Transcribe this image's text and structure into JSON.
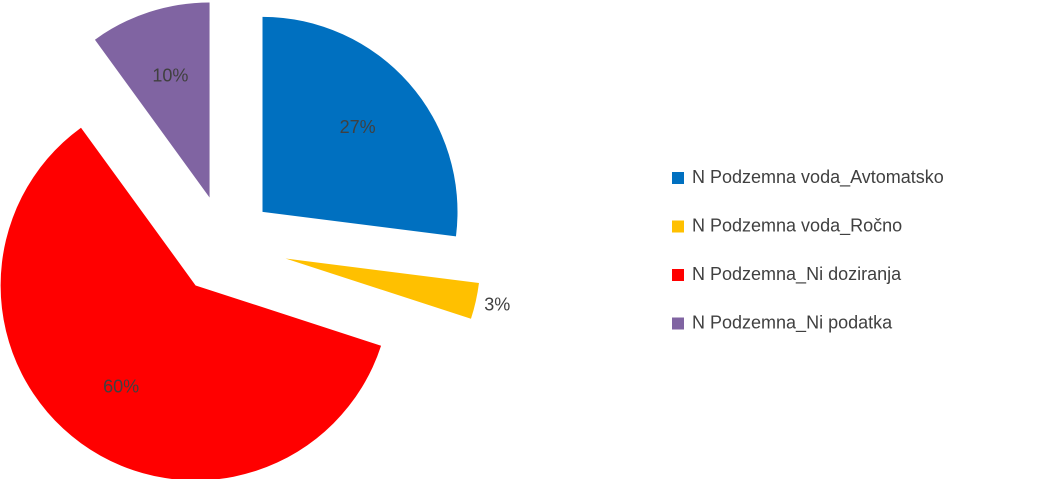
{
  "chart_data": {
    "type": "pie",
    "categories": [
      "N Podzemna voda_Avtomatsko",
      "N Podzemna voda_Ročno",
      "N Podzemna_Ni doziranja",
      "N Podzemna_Ni podatka"
    ],
    "values": [
      27,
      3,
      60,
      10
    ],
    "value_labels": [
      "27%",
      "3%",
      "60%",
      "10%"
    ],
    "colors": [
      "#0070c0",
      "#ffc000",
      "#ff0000",
      "#8064a2"
    ],
    "legend": "right"
  }
}
